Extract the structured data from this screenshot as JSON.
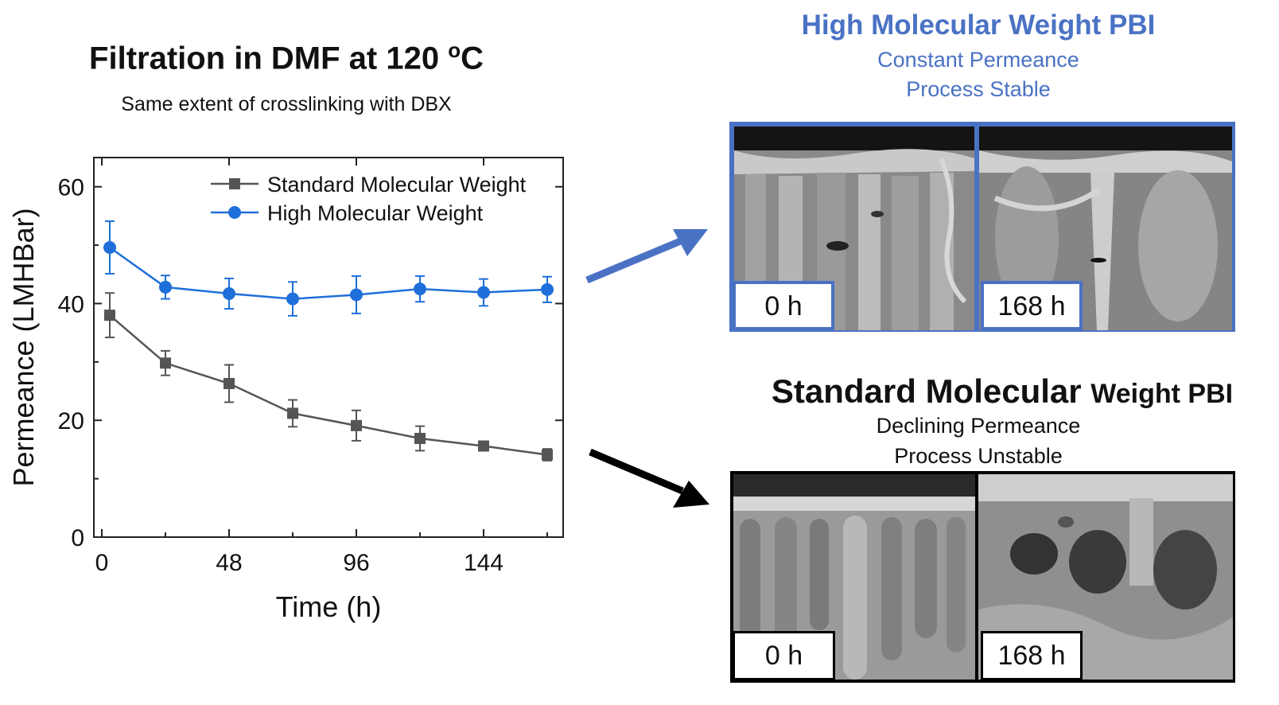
{
  "chart_data": {
    "type": "line",
    "title": "Filtration in DMF at 120 oC",
    "title_prefix": "Filtration in DMF at 120 ",
    "title_super": "o",
    "title_suffix": "C",
    "subtitle": "Same extent of crosslinking with DBX",
    "xlabel": "Time (h)",
    "ylabel": "Permeance (LMHBar)",
    "xlim": [
      -3,
      174
    ],
    "ylim": [
      0,
      65
    ],
    "xticks": [
      0,
      48,
      96,
      144
    ],
    "xtick_labels": [
      "0",
      "48",
      "96",
      "144"
    ],
    "yticks": [
      0,
      20,
      40,
      60
    ],
    "ytick_labels": [
      "0",
      "20",
      "40",
      "60"
    ],
    "legend_position": "top-right",
    "series": [
      {
        "name": "Standard Molecular Weight",
        "color": "#555555",
        "marker": "square",
        "x": [
          3,
          24,
          48,
          72,
          96,
          120,
          144,
          168
        ],
        "y": [
          38,
          29.8,
          26.3,
          21.2,
          19.1,
          16.9,
          15.6,
          14.1
        ],
        "err": [
          3.8,
          2.1,
          3.2,
          2.3,
          2.6,
          2.1,
          0.7,
          1.0
        ]
      },
      {
        "name": "High Molecular Weight",
        "color": "#1e6fd9",
        "marker": "circle",
        "x": [
          3,
          24,
          48,
          72,
          96,
          120,
          144,
          168
        ],
        "y": [
          49.6,
          42.8,
          41.7,
          40.8,
          41.5,
          42.5,
          41.9,
          42.4
        ],
        "err": [
          4.5,
          2.0,
          2.6,
          2.9,
          3.2,
          2.2,
          2.3,
          2.2
        ]
      }
    ]
  },
  "panels": {
    "high": {
      "title": "High Molecular Weight PBI",
      "line1": "Constant Permeance",
      "line2": "Process Stable",
      "color": "#4a72c4",
      "label_left": "0 h",
      "label_right": "168 h"
    },
    "standard": {
      "title_main": "Standard Molecular ",
      "title_small": "Weight PBI",
      "line1": "Declining Permeance",
      "line2": "Process Unstable",
      "color": "#111111",
      "label_left": "0 h",
      "label_right": "168 h"
    }
  },
  "arrows": {
    "high_color": "#4a72c4",
    "standard_color": "#000000"
  }
}
